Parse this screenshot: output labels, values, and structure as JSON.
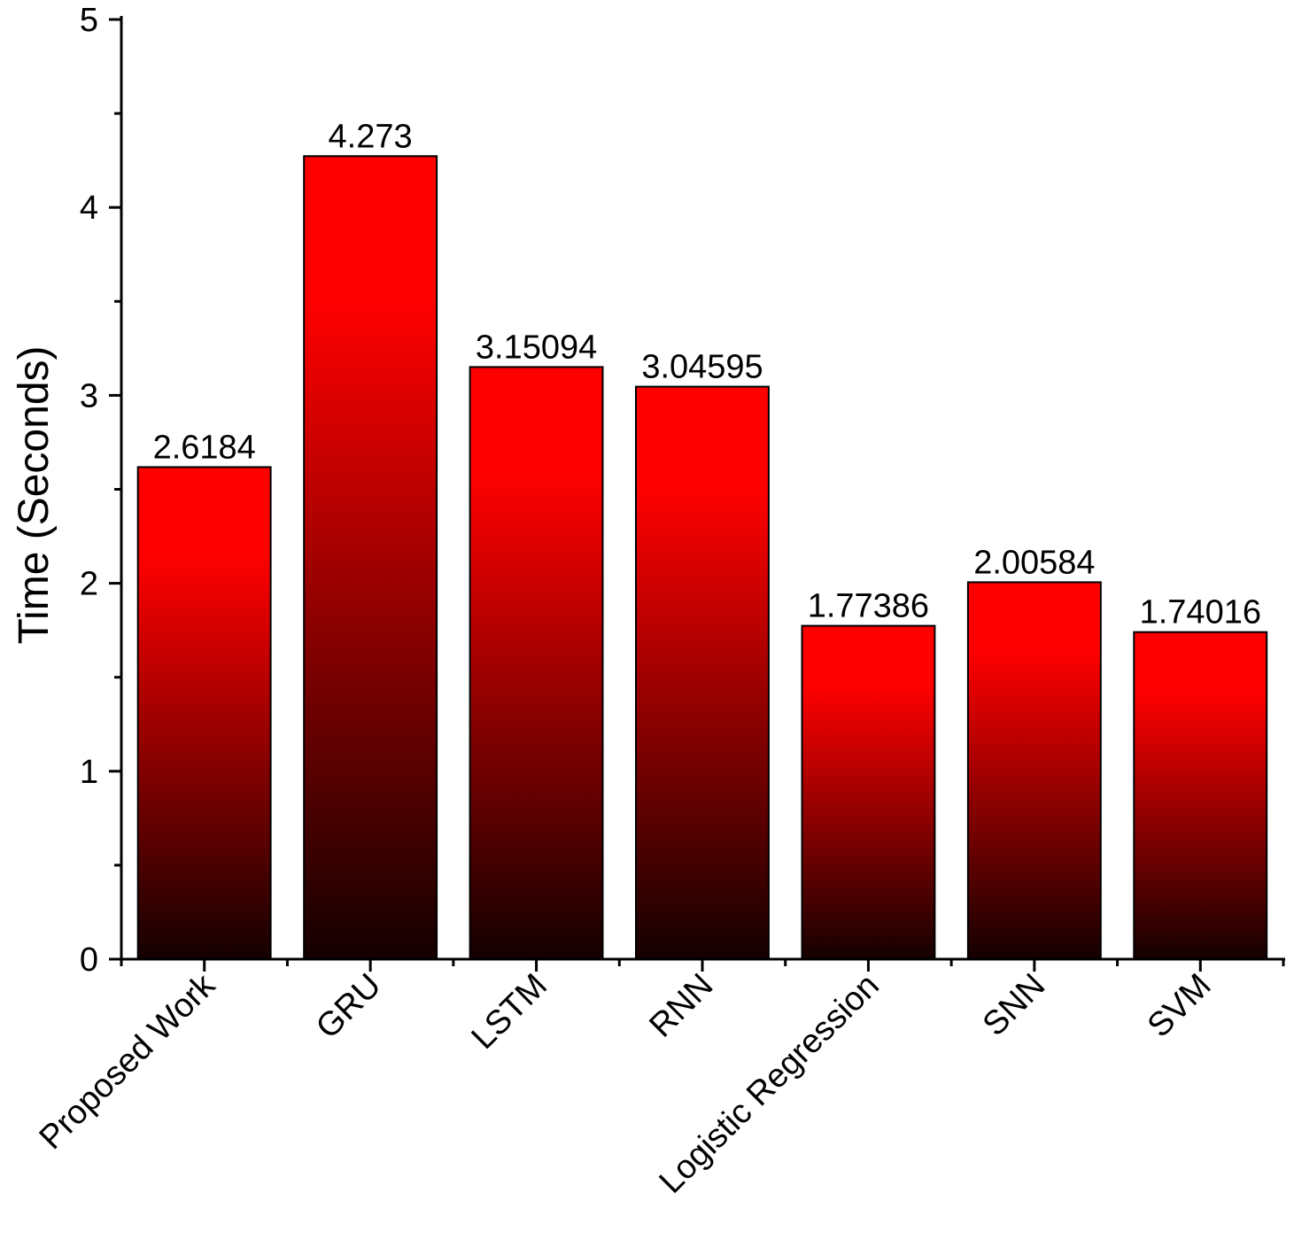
{
  "chart_data": {
    "type": "bar",
    "title": "",
    "xlabel": "",
    "ylabel": "Time (Seconds)",
    "ylim": [
      0,
      5
    ],
    "yticks": [
      0,
      1,
      2,
      3,
      4,
      5
    ],
    "grid": false,
    "categories": [
      "Proposed Work",
      "GRU",
      "LSTM",
      "RNN",
      "Logistic Regression",
      "SNN",
      "SVM"
    ],
    "values": [
      2.6184,
      4.273,
      3.15094,
      3.04595,
      1.77386,
      2.00584,
      1.74016
    ],
    "value_labels": [
      "2.6184",
      "4.273",
      "3.15094",
      "3.04595",
      "1.77386",
      "2.00584",
      "1.74016"
    ],
    "colors": {
      "bar_top": "#ff0000",
      "bar_bottom": "#140000",
      "outline": "#000000"
    }
  }
}
